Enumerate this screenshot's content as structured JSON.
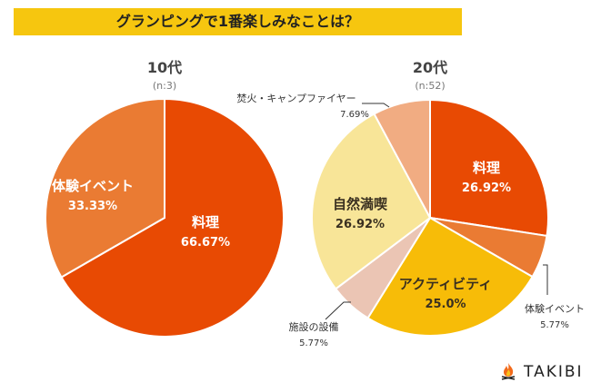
{
  "title": "グランピングで1番楽しみなことは？",
  "brand": {
    "name": "TAKIBI",
    "icon": "campfire-icon"
  },
  "colors": {
    "title_bg": "#f6c60f",
    "cooking": "#e84a03",
    "experience_event": "#ea7b33",
    "activity": "#f7bc08",
    "facility": "#ebc5b4",
    "nature": "#f8e598",
    "campfire": "#f1ac82"
  },
  "chart_data": [
    {
      "type": "pie",
      "title": "10代",
      "subtitle": "(n:3)",
      "start": "top",
      "direction": "clockwise",
      "slices": [
        {
          "label": "料理",
          "value": 66.67,
          "value_label": "66.67%",
          "color": "#e84a03",
          "label_inside": true,
          "text_color": "#ffffff"
        },
        {
          "label": "体験イベント",
          "value": 33.33,
          "value_label": "33.33%",
          "color": "#ea7b33",
          "label_inside": true,
          "text_color": "#ffffff"
        }
      ]
    },
    {
      "type": "pie",
      "title": "20代",
      "subtitle": "(n:52)",
      "start": "top",
      "direction": "clockwise",
      "slices": [
        {
          "label": "料理",
          "value": 26.92,
          "value_label": "26.92%",
          "color": "#e84a03",
          "label_inside": true,
          "text_color": "#ffffff"
        },
        {
          "label": "体験イベント",
          "value": 5.77,
          "value_label": "5.77%",
          "color": "#ea7b33",
          "label_inside": false,
          "text_color": "#333333"
        },
        {
          "label": "アクティビティ",
          "value": 25.0,
          "value_label": "25.0%",
          "color": "#f7bc08",
          "label_inside": true,
          "text_color": "#3a3020"
        },
        {
          "label": "施設の設備",
          "value": 5.77,
          "value_label": "5.77%",
          "color": "#ebc5b4",
          "label_inside": false,
          "text_color": "#333333"
        },
        {
          "label": "自然満喫",
          "value": 26.92,
          "value_label": "26.92%",
          "color": "#f8e598",
          "label_inside": true,
          "text_color": "#3a3020"
        },
        {
          "label": "焚火・キャンプファイヤー",
          "value": 7.69,
          "value_label": "7.69%",
          "color": "#f1ac82",
          "label_inside": false,
          "text_color": "#333333"
        }
      ]
    }
  ]
}
